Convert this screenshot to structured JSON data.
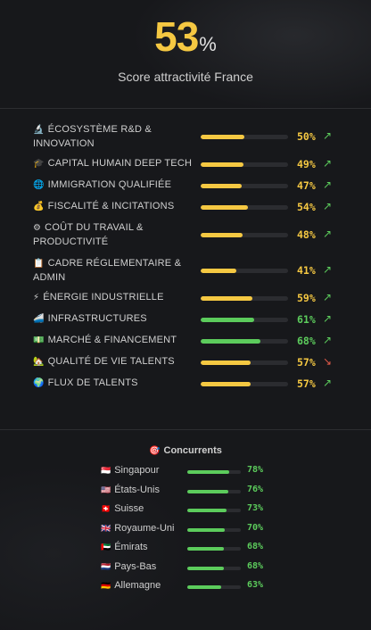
{
  "hero": {
    "score": "53",
    "unit": "%",
    "subtitle": "Score attractivité France"
  },
  "colors": {
    "yellow": "#f5c842",
    "green": "#5ccc5c",
    "red": "#e25a4a"
  },
  "criteria": [
    {
      "icon": "microscope-icon",
      "glyph": "🔬",
      "label": "ÉCOSYSTÈME R&D & INNOVATION",
      "value": 50,
      "pct": "50%",
      "bar": "yellow",
      "trend": "↗",
      "trend_color": "green"
    },
    {
      "icon": "graduation-cap-icon",
      "glyph": "🎓",
      "label": "CAPITAL HUMAIN DEEP TECH",
      "value": 49,
      "pct": "49%",
      "bar": "yellow",
      "trend": "↗",
      "trend_color": "green"
    },
    {
      "icon": "globe-icon",
      "glyph": "🌐",
      "label": "IMMIGRATION QUALIFIÉE",
      "value": 47,
      "pct": "47%",
      "bar": "yellow",
      "trend": "↗",
      "trend_color": "green"
    },
    {
      "icon": "money-bag-icon",
      "glyph": "💰",
      "label": "FISCALITÉ & INCITATIONS",
      "value": 54,
      "pct": "54%",
      "bar": "yellow",
      "trend": "↗",
      "trend_color": "green"
    },
    {
      "icon": "gear-icon",
      "glyph": "⚙",
      "label": "COÛT DU TRAVAIL & PRODUCTIVITÉ",
      "value": 48,
      "pct": "48%",
      "bar": "yellow",
      "trend": "↗",
      "trend_color": "green"
    },
    {
      "icon": "clipboard-icon",
      "glyph": "📋",
      "label": "CADRE RÉGLEMENTAIRE & ADMIN",
      "value": 41,
      "pct": "41%",
      "bar": "yellow",
      "trend": "↗",
      "trend_color": "green"
    },
    {
      "icon": "lightning-icon",
      "glyph": "⚡",
      "label": "ÉNERGIE INDUSTRIELLE",
      "value": 59,
      "pct": "59%",
      "bar": "yellow",
      "trend": "↗",
      "trend_color": "green"
    },
    {
      "icon": "train-icon",
      "glyph": "🚄",
      "label": "INFRASTRUCTURES",
      "value": 61,
      "pct": "61%",
      "bar": "green",
      "trend": "↗",
      "trend_color": "green"
    },
    {
      "icon": "banknote-icon",
      "glyph": "💵",
      "label": "MARCHÉ & FINANCEMENT",
      "value": 68,
      "pct": "68%",
      "bar": "green",
      "trend": "↗",
      "trend_color": "green"
    },
    {
      "icon": "house-icon",
      "glyph": "🏡",
      "label": "QUALITÉ DE VIE TALENTS",
      "value": 57,
      "pct": "57%",
      "bar": "yellow",
      "trend": "↘",
      "trend_color": "red"
    },
    {
      "icon": "earth-icon",
      "glyph": "🌍",
      "label": "FLUX DE TALENTS",
      "value": 57,
      "pct": "57%",
      "bar": "yellow",
      "trend": "↗",
      "trend_color": "green"
    }
  ],
  "competitors": {
    "icon": "target-icon",
    "glyph": "🎯",
    "title": "Concurrents",
    "items": [
      {
        "flag": "singapore-flag-icon",
        "glyph": "🇸🇬",
        "name": "Singapour",
        "value": 78,
        "pct": "78%"
      },
      {
        "flag": "usa-flag-icon",
        "glyph": "🇺🇸",
        "name": "États-Unis",
        "value": 76,
        "pct": "76%"
      },
      {
        "flag": "switzerland-flag-icon",
        "glyph": "🇨🇭",
        "name": "Suisse",
        "value": 73,
        "pct": "73%"
      },
      {
        "flag": "uk-flag-icon",
        "glyph": "🇬🇧",
        "name": "Royaume-Uni",
        "value": 70,
        "pct": "70%"
      },
      {
        "flag": "uae-flag-icon",
        "glyph": "🇦🇪",
        "name": "Émirats",
        "value": 68,
        "pct": "68%"
      },
      {
        "flag": "netherlands-flag-icon",
        "glyph": "🇳🇱",
        "name": "Pays-Bas",
        "value": 68,
        "pct": "68%"
      },
      {
        "flag": "germany-flag-icon",
        "glyph": "🇩🇪",
        "name": "Allemagne",
        "value": 63,
        "pct": "63%"
      }
    ]
  }
}
